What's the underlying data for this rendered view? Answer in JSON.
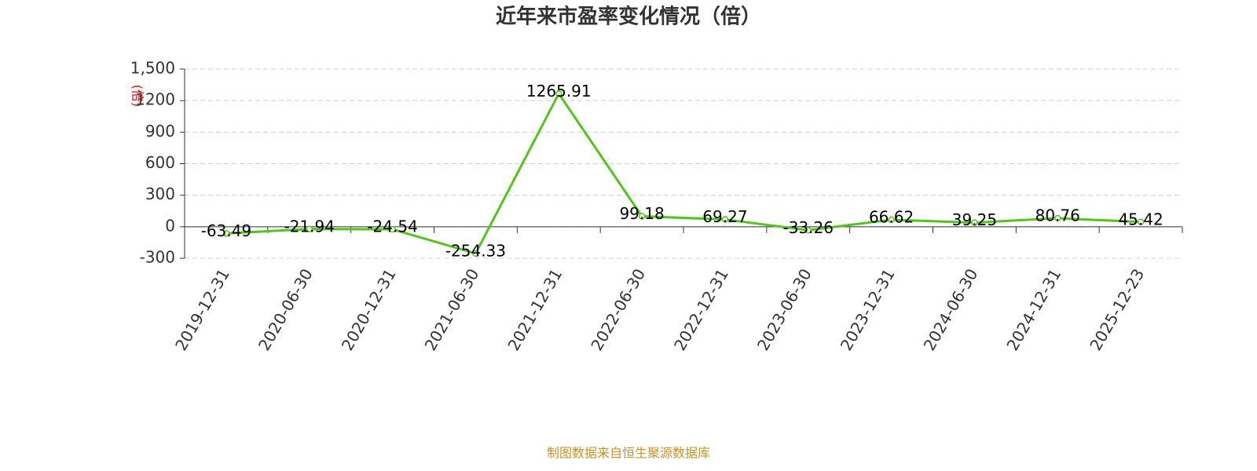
{
  "chart_data": {
    "type": "line",
    "title": "近年来市盈率变化情况（倍）",
    "y_label": "(倍)",
    "source": "制图数据来自恒生聚源数据库",
    "categories": [
      "2019-12-31",
      "2020-06-30",
      "2020-12-31",
      "2021-06-30",
      "2021-12-31",
      "2022-06-30",
      "2022-12-31",
      "2023-06-30",
      "2023-12-31",
      "2024-06-30",
      "2024-12-31",
      "2025-12-23"
    ],
    "values": [
      -63.49,
      -21.94,
      -24.54,
      -254.33,
      1265.91,
      99.18,
      69.27,
      -33.26,
      66.62,
      39.25,
      80.76,
      45.42
    ],
    "color": "#52c41a",
    "ylim": [
      -300,
      1500
    ],
    "yticks": [
      -300,
      0,
      300,
      600,
      900,
      1200,
      {
        "value": 1500,
        "label": "1,500"
      }
    ],
    "grid": true
  }
}
